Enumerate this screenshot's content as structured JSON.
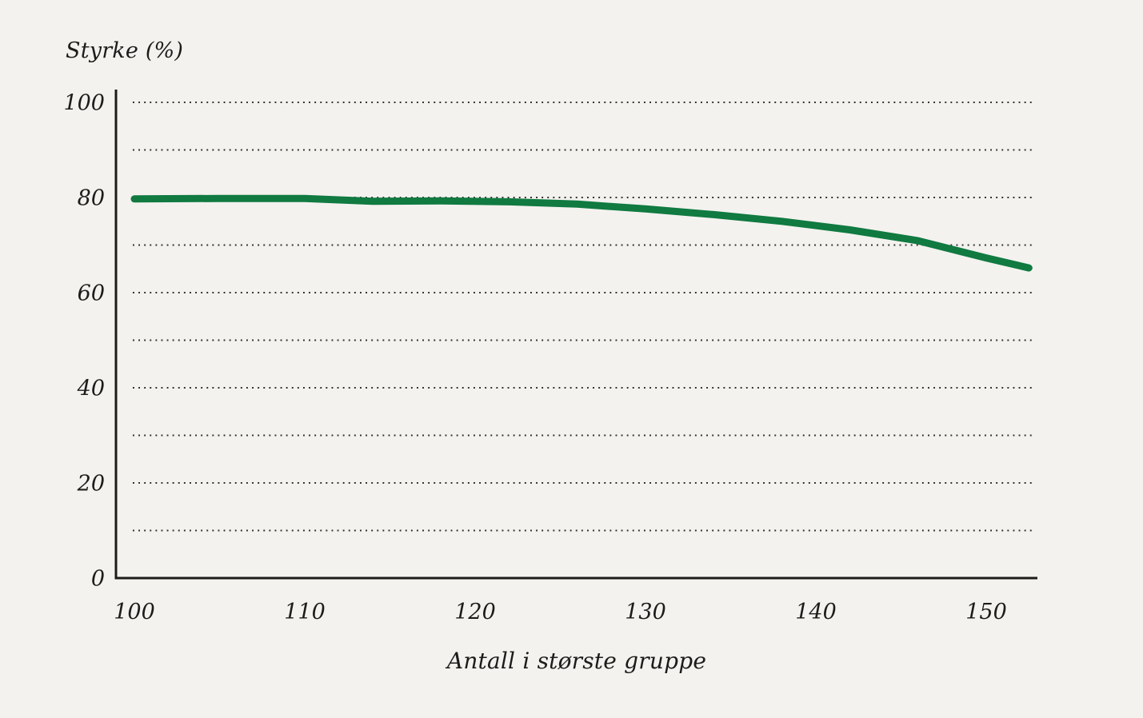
{
  "page": {
    "background_color": "#f3f2ef",
    "text_color": "#1d1c1a"
  },
  "chart_data": {
    "type": "line",
    "title": "",
    "ylabel": "Styrke (%)",
    "xlabel": "Antall i største gruppe",
    "xlim": [
      100,
      153
    ],
    "ylim": [
      0,
      100
    ],
    "x_ticks": [
      100,
      110,
      120,
      130,
      140,
      150
    ],
    "y_ticks": [
      100,
      80,
      60,
      40,
      20,
      0
    ],
    "grid_values": [
      10,
      20,
      30,
      40,
      50,
      60,
      70,
      80,
      90,
      100
    ],
    "grid_style": "dotted horizontal",
    "legend": "none",
    "axis_color": "#1d1c1a",
    "grid_color": "#2e2d2b",
    "series": [
      {
        "name": "Styrke",
        "color": "#107a40",
        "line_width": 9,
        "points": [
          {
            "x": 100,
            "y": 79.7
          },
          {
            "x": 105,
            "y": 79.8
          },
          {
            "x": 110,
            "y": 79.8
          },
          {
            "x": 114,
            "y": 79.2
          },
          {
            "x": 118,
            "y": 79.3
          },
          {
            "x": 122,
            "y": 79.1
          },
          {
            "x": 126,
            "y": 78.6
          },
          {
            "x": 130,
            "y": 77.6
          },
          {
            "x": 134,
            "y": 76.4
          },
          {
            "x": 138,
            "y": 75.0
          },
          {
            "x": 142,
            "y": 73.2
          },
          {
            "x": 146,
            "y": 70.9
          },
          {
            "x": 150,
            "y": 67.3
          },
          {
            "x": 152.5,
            "y": 65.2
          }
        ]
      }
    ]
  }
}
